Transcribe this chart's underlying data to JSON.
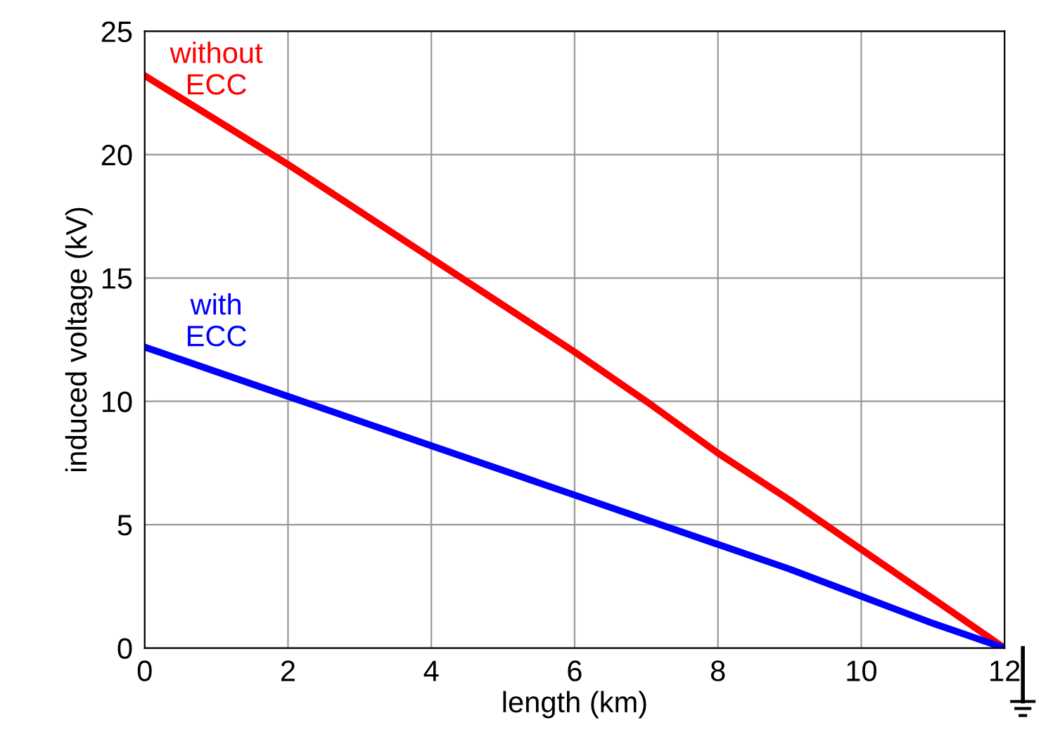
{
  "chart_data": {
    "type": "line",
    "xlabel": "length (km)",
    "ylabel": "induced voltage (kV)",
    "x": [
      0,
      1,
      2,
      3,
      4,
      5,
      6,
      7,
      8,
      9,
      10,
      11,
      12
    ],
    "series": [
      {
        "name": "without ECC",
        "color": "#ff0000",
        "values": [
          23.2,
          21.4,
          19.6,
          17.7,
          15.8,
          13.9,
          12.0,
          10.0,
          7.9,
          6.0,
          4.0,
          2.0,
          0
        ]
      },
      {
        "name": "with ECC",
        "color": "#0000ff",
        "values": [
          12.2,
          11.2,
          10.2,
          9.2,
          8.2,
          7.2,
          6.2,
          5.2,
          4.2,
          3.2,
          2.1,
          1.0,
          0
        ]
      }
    ],
    "xlim": [
      0,
      12
    ],
    "ylim": [
      0,
      25
    ],
    "xticks": [
      0,
      2,
      4,
      6,
      8,
      10,
      12
    ],
    "yticks": [
      0,
      5,
      10,
      15,
      20,
      25
    ],
    "grid": true,
    "line_style": "solid",
    "marker": "none",
    "legend": false
  }
}
